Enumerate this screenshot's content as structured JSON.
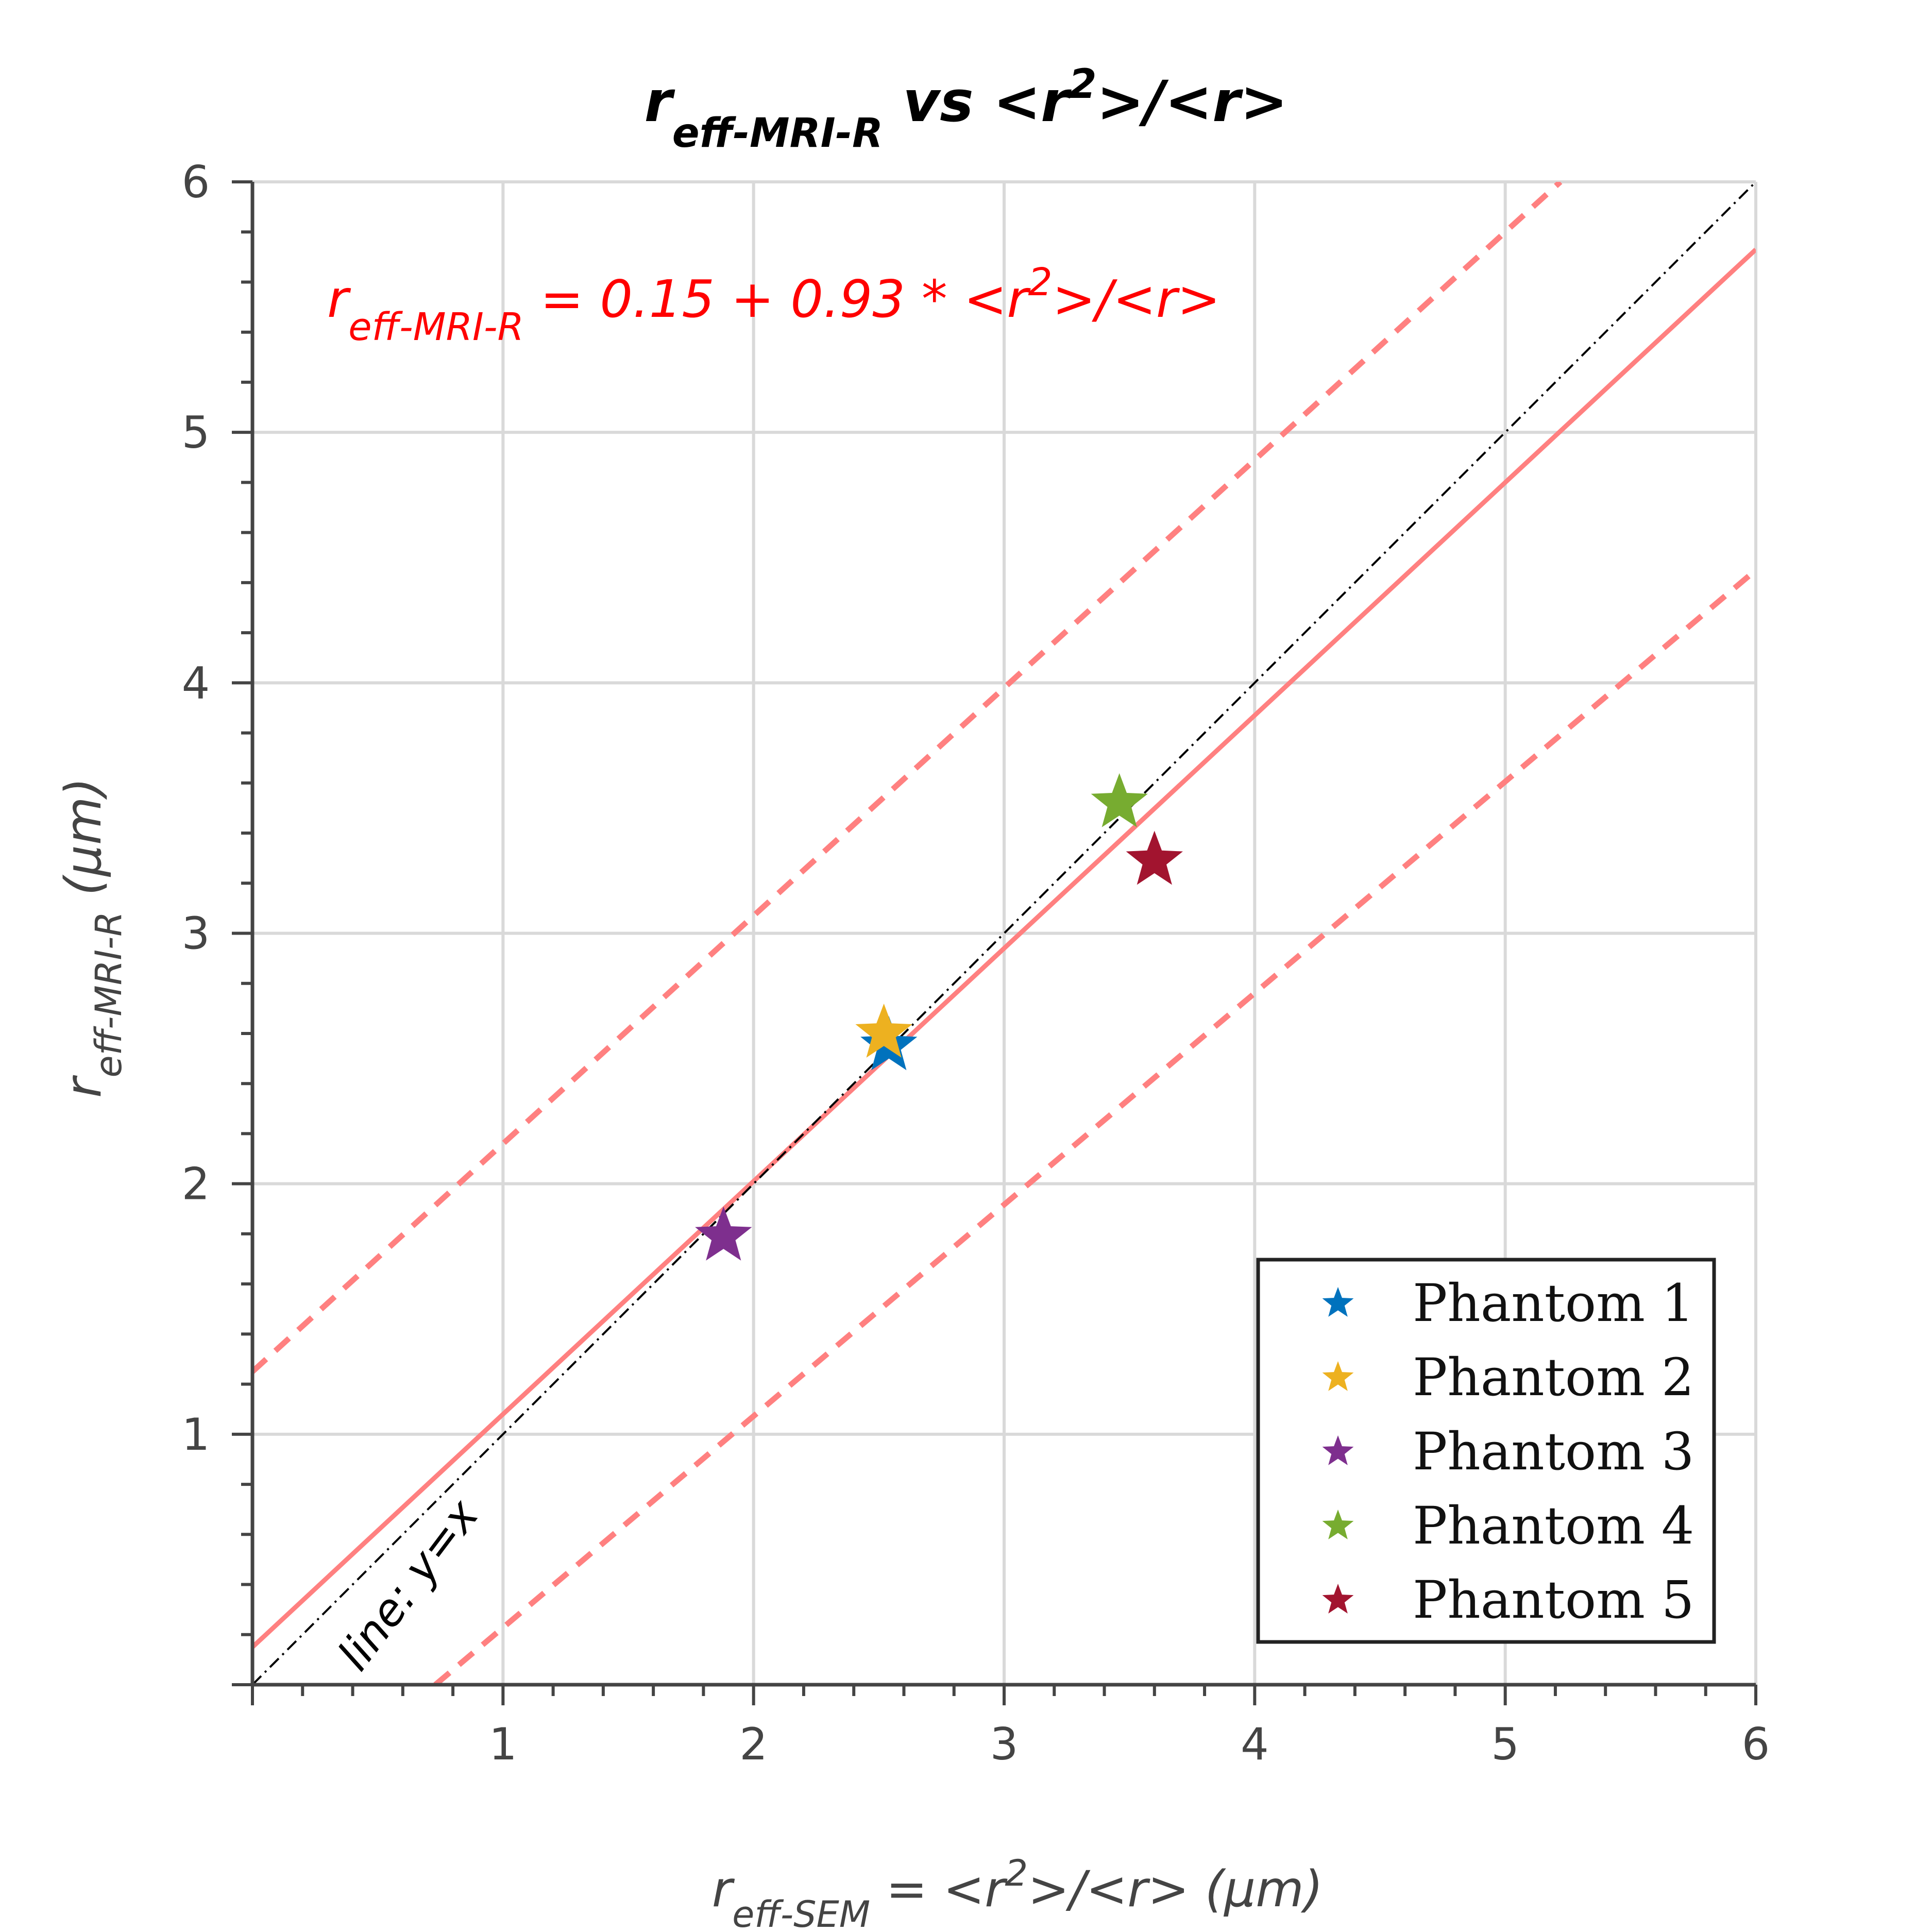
{
  "chart_data": {
    "type": "scatter",
    "title": {
      "main": "r",
      "main_sub": "eff-MRI-R",
      "rest": " vs <r",
      "rest_sup": "2",
      "rest_tail": ">/<r>"
    },
    "xlabel": {
      "main": "r",
      "sub": "eff-SEM",
      "rest": " = <r",
      "sup": "2",
      "tail": ">/<r> (μm)"
    },
    "ylabel": {
      "main": "r",
      "sub": "eff-MRI-R",
      "tail": " (μm)"
    },
    "xlim": [
      0,
      6
    ],
    "ylim": [
      0,
      6
    ],
    "xticks": [
      1,
      2,
      3,
      4,
      5,
      6
    ],
    "yticks": [
      1,
      2,
      3,
      4,
      5,
      6
    ],
    "grid": true,
    "legend_position": "bottom-right",
    "series": [
      {
        "name": "Phantom 1",
        "color": "#0072bd",
        "marker": "star",
        "x": [
          2.54
        ],
        "y": [
          2.55
        ]
      },
      {
        "name": "Phantom 2",
        "color": "#edb120",
        "marker": "star",
        "x": [
          2.52
        ],
        "y": [
          2.6
        ]
      },
      {
        "name": "Phantom 3",
        "color": "#7e2f8e",
        "marker": "star",
        "x": [
          1.88
        ],
        "y": [
          1.79
        ]
      },
      {
        "name": "Phantom 4",
        "color": "#77ac30",
        "marker": "star",
        "x": [
          3.46
        ],
        "y": [
          3.52
        ]
      },
      {
        "name": "Phantom 5",
        "color": "#a2142f",
        "marker": "star",
        "x": [
          3.6
        ],
        "y": [
          3.29
        ]
      }
    ],
    "fit_line": {
      "intercept": 0.15,
      "slope": 0.93,
      "color": "#ff8080",
      "equation": {
        "main": "r",
        "sub": "eff-MRI-R",
        "rest": " = 0.15 + 0.93 * <r",
        "sup": "2",
        "tail": ">/<r>"
      }
    },
    "confidence_bands": {
      "color": "#ff8080",
      "upper": {
        "x": [
          0,
          5.22
        ],
        "y": [
          1.25,
          6.0
        ]
      },
      "lower": {
        "x": [
          0.73,
          6.0
        ],
        "y": [
          0.0,
          4.45
        ]
      }
    },
    "identity_line": {
      "label": "line: y=x",
      "color": "#000000"
    }
  }
}
